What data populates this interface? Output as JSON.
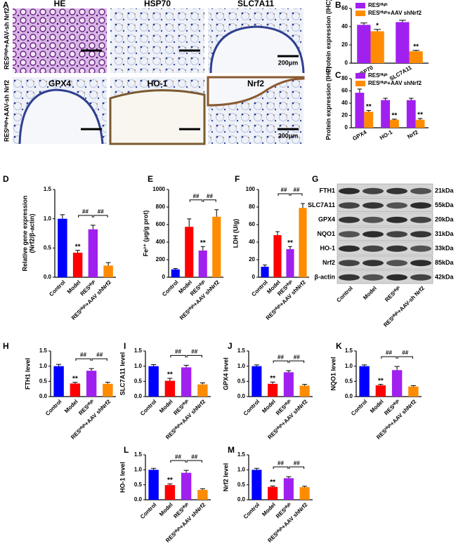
{
  "panel_a": {
    "label": "A",
    "row_labels": [
      "RESᴴⁱᵍʰ+AAV-sh Nrf2",
      "RESᴴⁱᵍʰ+AAV-sh Nrf2"
    ],
    "tiles": [
      {
        "title": "HE"
      },
      {
        "title": "HSP70"
      },
      {
        "title": "SLC7A11"
      },
      {
        "title": "GPX4"
      },
      {
        "title": "HO-1"
      },
      {
        "title": "Nrf2"
      }
    ],
    "scale_bar": "200μm"
  },
  "panel_g": {
    "label": "G",
    "proteins": [
      {
        "name": "FTH1",
        "kda": "21kDa"
      },
      {
        "name": "SLC7A11",
        "kda": "55kDa"
      },
      {
        "name": "GPX4",
        "kda": "20kDa"
      },
      {
        "name": "NQO1",
        "kda": "31kDa"
      },
      {
        "name": "HO-1",
        "kda": "33kDa"
      },
      {
        "name": "Nrf2",
        "kda": "85kDa"
      },
      {
        "name": "β-actin",
        "kda": "42kDa"
      }
    ],
    "lanes": [
      "Control",
      "Model",
      "RESᴴⁱᵍʰ",
      "RESᴴⁱᵍʰ+AAV-sh Nrf2"
    ]
  },
  "chart_data": [
    {
      "panel": "B",
      "type": "grouped_bar",
      "ylabel": "Protein expression (IHC)",
      "categories": [
        "HSP70",
        "SLC7A11"
      ],
      "series": [
        {
          "name": "RESᴴⁱᵍʰ",
          "color": "#a020f0",
          "values": [
            42,
            45
          ],
          "errors": [
            2,
            2
          ],
          "marks": [
            null,
            null
          ]
        },
        {
          "name": "RESᴴⁱᵍʰ+AAV shNrf2",
          "color": "#ff8c00",
          "values": [
            35,
            13
          ],
          "errors": [
            2,
            1
          ],
          "marks": [
            "*",
            "**"
          ]
        }
      ],
      "ylim": [
        0,
        60
      ],
      "yticks": [
        0,
        20,
        40,
        60
      ]
    },
    {
      "panel": "C",
      "type": "grouped_bar",
      "ylabel": "Protein expression (IHC)",
      "categories": [
        "GPX4",
        "HO-1",
        "Nrf2"
      ],
      "series": [
        {
          "name": "RESᴴⁱᵍʰ",
          "color": "#a020f0",
          "values": [
            57,
            45,
            45
          ],
          "errors": [
            6,
            3,
            3
          ],
          "marks": [
            null,
            null,
            null
          ]
        },
        {
          "name": "RESᴴⁱᵍʰ+AAV shNrf2",
          "color": "#ff8c00",
          "values": [
            26,
            13,
            13
          ],
          "errors": [
            2,
            1,
            2
          ],
          "marks": [
            "**",
            "**",
            "**"
          ]
        }
      ],
      "ylim": [
        0,
        80
      ],
      "yticks": [
        0,
        20,
        40,
        60,
        80
      ]
    },
    {
      "panel": "D",
      "type": "bar",
      "ylabel": [
        "Relative gene expression",
        "(Nrf2/β-actin)"
      ],
      "categories": [
        "Control",
        "Model",
        "RESᴴⁱᵍʰ",
        "RESᴴⁱᵍʰ+AAV shNrf2"
      ],
      "colors": [
        "#0000ff",
        "#ff0000",
        "#a020f0",
        "#ff8c00"
      ],
      "values": [
        1.0,
        0.42,
        0.82,
        0.2
      ],
      "errors": [
        0.07,
        0.04,
        0.07,
        0.05
      ],
      "marks": [
        null,
        "**",
        null,
        null
      ],
      "comparisons": [
        "##",
        "##"
      ],
      "ylim": [
        0,
        1.5
      ],
      "yticks": [
        {
          "value": 0,
          "label": "0.0"
        },
        0.5,
        {
          "value": 1,
          "label": "1.0"
        },
        1.5
      ]
    },
    {
      "panel": "E",
      "type": "bar",
      "ylabel": "Fe²⁺ (μg/g prot)",
      "categories": [
        "Control",
        "Model",
        "RESᴴⁱᵍʰ",
        "RESᴴⁱᵍʰ+AAV shNrf2"
      ],
      "colors": [
        "#0000ff",
        "#ff0000",
        "#a020f0",
        "#ff8c00"
      ],
      "values": [
        90,
        575,
        305,
        690
      ],
      "errors": [
        10,
        90,
        45,
        80
      ],
      "marks": [
        null,
        null,
        "**",
        null
      ],
      "comparisons": [
        "##",
        "##"
      ],
      "ylim": [
        0,
        1000
      ],
      "yticks": [
        0,
        200,
        400,
        600,
        800,
        1000
      ]
    },
    {
      "panel": "F",
      "type": "bar",
      "ylabel": "LDH (U/g)",
      "categories": [
        "Control",
        "Model",
        "RESᴴⁱᵍʰ",
        "RESᴴⁱᵍʰ+AAV shNrf2"
      ],
      "colors": [
        "#0000ff",
        "#ff0000",
        "#a020f0",
        "#ff8c00"
      ],
      "values": [
        12,
        48,
        32,
        79
      ],
      "errors": [
        2,
        4,
        3,
        5
      ],
      "marks": [
        null,
        null,
        "**",
        null
      ],
      "comparisons": [
        "##",
        "##"
      ],
      "ylim": [
        0,
        100
      ],
      "yticks": [
        0,
        20,
        40,
        60,
        80,
        100
      ]
    },
    {
      "panel": "H",
      "type": "bar",
      "ylabel": "FTH1 level",
      "categories": [
        "Control",
        "Model",
        "RESᴴⁱᵍʰ",
        "RESᴴⁱᵍʰ+AAV shNrf2"
      ],
      "colors": [
        "#0000ff",
        "#ff0000",
        "#a020f0",
        "#ff8c00"
      ],
      "values": [
        1.0,
        0.43,
        0.85,
        0.42
      ],
      "errors": [
        0.06,
        0.04,
        0.07,
        0.05
      ],
      "marks": [
        null,
        "**",
        null,
        null
      ],
      "comparisons": [
        "##",
        "##"
      ],
      "ylim": [
        0,
        1.5
      ],
      "yticks": [
        {
          "value": 0,
          "label": "0.0"
        },
        0.5,
        {
          "value": 1,
          "label": "1.0"
        },
        1.5
      ]
    },
    {
      "panel": "I",
      "type": "bar",
      "ylabel": "SLC7A11 level",
      "categories": [
        "Control",
        "Model",
        "RESᴴⁱᵍʰ",
        "RESᴴⁱᵍʰ+AAV shNrf2"
      ],
      "colors": [
        "#0000ff",
        "#ff0000",
        "#a020f0",
        "#ff8c00"
      ],
      "values": [
        1.0,
        0.52,
        0.96,
        0.4
      ],
      "errors": [
        0.05,
        0.08,
        0.07,
        0.05
      ],
      "marks": [
        null,
        "**",
        null,
        null
      ],
      "comparisons": [
        "##",
        "##"
      ],
      "ylim": [
        0,
        1.5
      ],
      "yticks": [
        {
          "value": 0,
          "label": "0.0"
        },
        0.5,
        {
          "value": 1,
          "label": "1.0"
        },
        1.5
      ]
    },
    {
      "panel": "J",
      "type": "bar",
      "ylabel": "GPX4 level",
      "categories": [
        "Control",
        "Model",
        "RESᴴⁱᵍʰ",
        "RESᴴⁱᵍʰ+AAV shNrf2"
      ],
      "colors": [
        "#0000ff",
        "#ff0000",
        "#a020f0",
        "#ff8c00"
      ],
      "values": [
        1.0,
        0.42,
        0.8,
        0.36
      ],
      "errors": [
        0.04,
        0.06,
        0.05,
        0.04
      ],
      "marks": [
        null,
        "**",
        null,
        null
      ],
      "comparisons": [
        "##",
        "##"
      ],
      "ylim": [
        0,
        1.5
      ],
      "yticks": [
        {
          "value": 0,
          "label": "0.0"
        },
        0.5,
        {
          "value": 1,
          "label": "1.0"
        },
        1.5
      ]
    },
    {
      "panel": "K",
      "type": "bar",
      "ylabel": "NQO1 level",
      "categories": [
        "Control",
        "Model",
        "RESᴴⁱᵍʰ",
        "RESᴴⁱᵍʰ+AAV shNrf2"
      ],
      "colors": [
        "#0000ff",
        "#ff0000",
        "#a020f0",
        "#ff8c00"
      ],
      "values": [
        1.0,
        0.37,
        0.87,
        0.33
      ],
      "errors": [
        0.04,
        0.03,
        0.12,
        0.03
      ],
      "marks": [
        null,
        "**",
        null,
        null
      ],
      "comparisons": [
        "##",
        "##"
      ],
      "ylim": [
        0,
        1.5
      ],
      "yticks": [
        {
          "value": 0,
          "label": "0.0"
        },
        0.5,
        {
          "value": 1,
          "label": "1.0"
        },
        1.5
      ]
    },
    {
      "panel": "L",
      "type": "bar",
      "ylabel": "HO-1 level",
      "categories": [
        "Control",
        "Model",
        "RESᴴⁱᵍʰ",
        "RESᴴⁱᵍʰ+AAV shNrf2"
      ],
      "colors": [
        "#0000ff",
        "#ff0000",
        "#a020f0",
        "#ff8c00"
      ],
      "values": [
        1.0,
        0.49,
        0.9,
        0.33
      ],
      "errors": [
        0.05,
        0.04,
        0.08,
        0.04
      ],
      "marks": [
        null,
        "**",
        null,
        null
      ],
      "comparisons": [
        "##",
        "##"
      ],
      "ylim": [
        0,
        1.5
      ],
      "yticks": [
        {
          "value": 0,
          "label": "0.0"
        },
        0.5,
        {
          "value": 1,
          "label": "1.0"
        },
        1.5
      ]
    },
    {
      "panel": "M",
      "type": "bar",
      "ylabel": "Nrf2 level",
      "categories": [
        "Control",
        "Model",
        "RESᴴⁱᵍʰ",
        "RESᴴⁱᵍʰ+AAV shNrf2"
      ],
      "colors": [
        "#0000ff",
        "#ff0000",
        "#a020f0",
        "#ff8c00"
      ],
      "values": [
        1.0,
        0.43,
        0.72,
        0.42
      ],
      "errors": [
        0.05,
        0.03,
        0.05,
        0.03
      ],
      "marks": [
        null,
        "**",
        null,
        null
      ],
      "comparisons": [
        "##",
        "##"
      ],
      "ylim": [
        0,
        1.5
      ],
      "yticks": [
        {
          "value": 0,
          "label": "0.0"
        },
        0.5,
        {
          "value": 1,
          "label": "1.0"
        },
        1.5
      ]
    }
  ]
}
